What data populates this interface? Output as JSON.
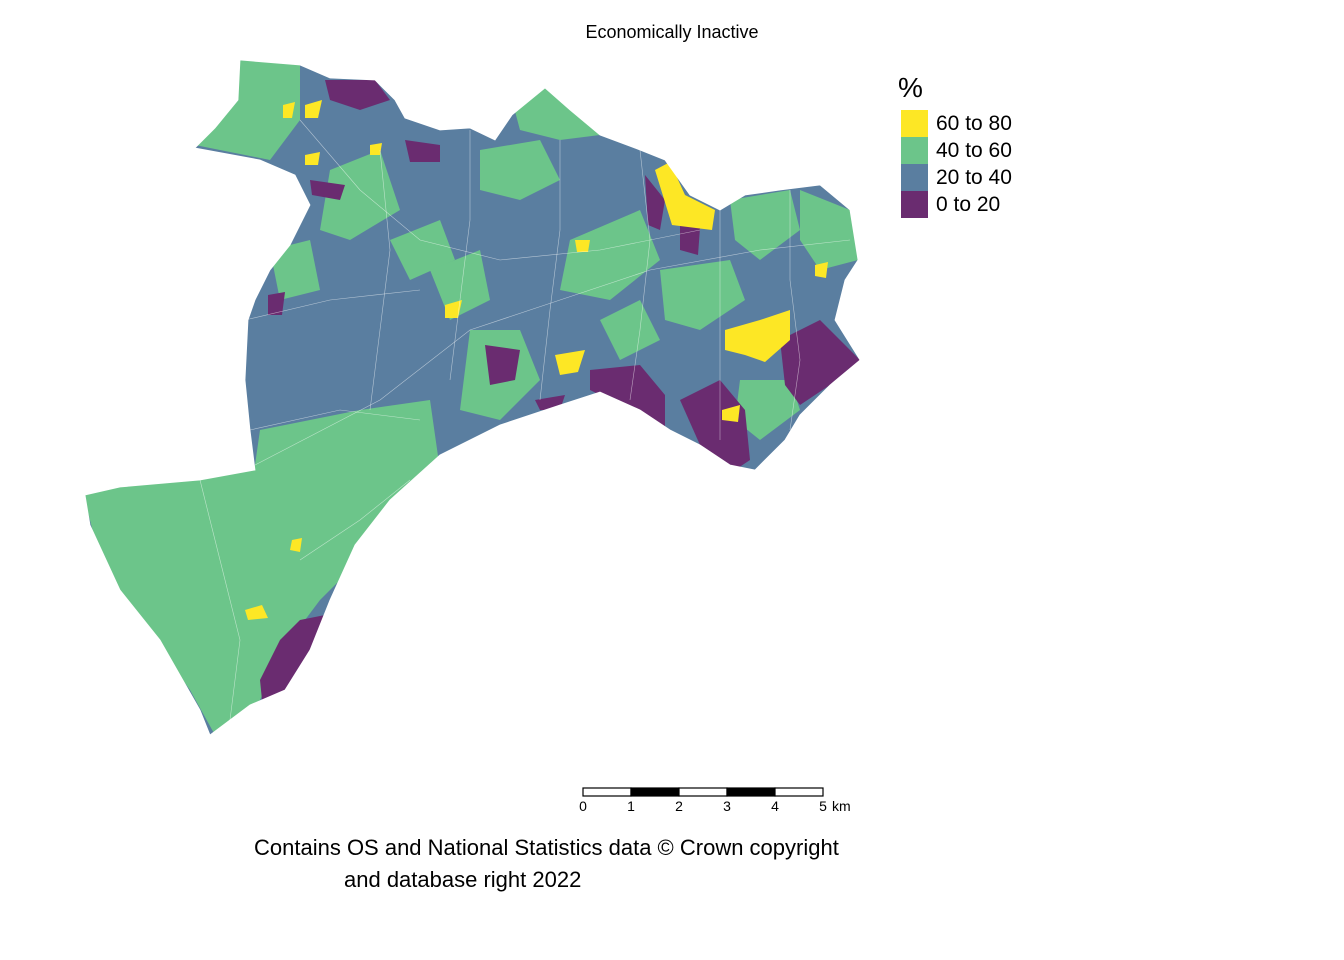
{
  "title": "Economically Inactive",
  "legend": {
    "title": "%",
    "items": [
      {
        "label": "60 to 80",
        "color": "#fde725"
      },
      {
        "label": "40 to 60",
        "color": "#6cc58a"
      },
      {
        "label": "20 to 40",
        "color": "#5a7ea0"
      },
      {
        "label": "0 to 20",
        "color": "#6a2c70"
      }
    ]
  },
  "scale_bar": {
    "ticks": [
      "0",
      "1",
      "2",
      "3",
      "4",
      "5"
    ],
    "unit": "km"
  },
  "credit": {
    "line1": "Contains OS and National Statistics data © Crown copyright",
    "line2": "and database right 2022"
  }
}
